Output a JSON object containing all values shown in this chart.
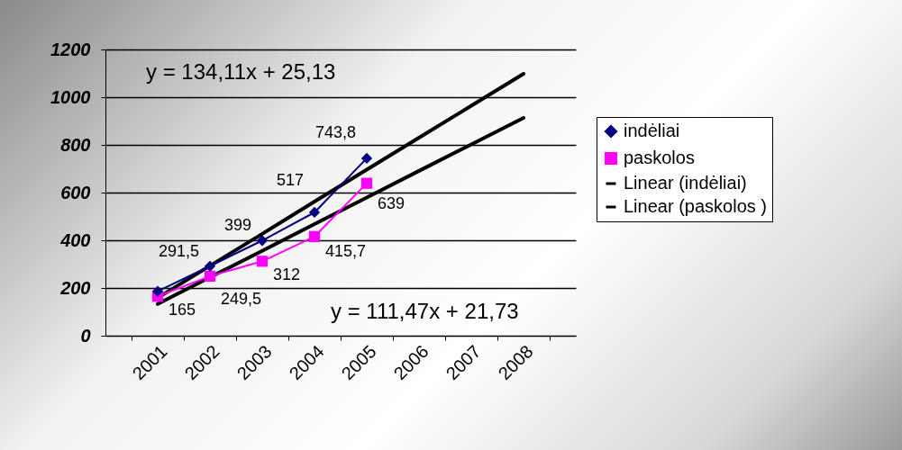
{
  "chart_data": {
    "type": "line",
    "categories": [
      "2001",
      "2002",
      "2003",
      "2004",
      "2005",
      "2006",
      "2007",
      "2008"
    ],
    "series": [
      {
        "name": "indėliai",
        "color": "#000080",
        "marker": "diamond",
        "values": [
          186,
          291.5,
          399,
          517,
          743.8,
          null,
          null,
          null
        ],
        "value_labels": [
          null,
          "291,5",
          "399",
          "517",
          "743,8",
          null,
          null,
          null
        ]
      },
      {
        "name": "paskolos",
        "color": "#ff00ff",
        "marker": "square",
        "values": [
          165,
          249.5,
          312,
          415.7,
          639,
          null,
          null,
          null
        ],
        "value_labels": [
          "165",
          "249,5",
          "312",
          "415,7",
          "639",
          null,
          null,
          null
        ]
      },
      {
        "name": "Linear (indėliai)",
        "color": "#000000",
        "marker": "none",
        "values": [
          159,
          293,
          427,
          562,
          696,
          830,
          964,
          1098
        ]
      },
      {
        "name": "Linear (paskolos )",
        "color": "#000000",
        "marker": "none",
        "values": [
          133,
          245,
          356,
          468,
          579,
          691,
          802,
          913
        ]
      }
    ],
    "ylim": [
      0,
      1200
    ],
    "yticks": [
      0,
      200,
      400,
      600,
      800,
      1000,
      1200
    ],
    "grid": "y",
    "legend": "right",
    "annotations": [
      "y = 134,11x + 25,13",
      "y = 111,47x + 21,73"
    ]
  }
}
